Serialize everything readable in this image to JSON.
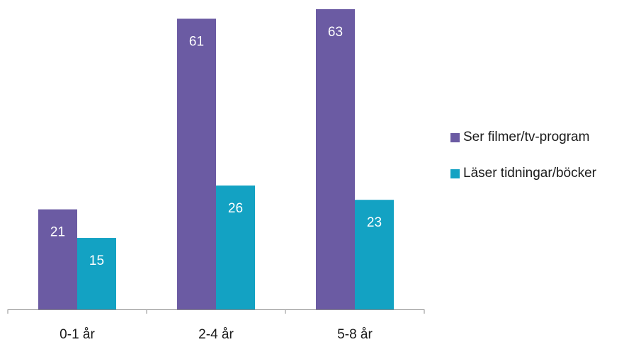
{
  "chart_data": {
    "type": "bar",
    "categories": [
      "0-1 år",
      "2-4 år",
      "5-8 år"
    ],
    "series": [
      {
        "name": "Ser filmer/tv-program",
        "values": [
          21,
          61,
          63
        ],
        "color": "#6b5ba3"
      },
      {
        "name": "Läser tidningar/böcker",
        "values": [
          15,
          26,
          23
        ],
        "color": "#13a2c3"
      }
    ],
    "title": "",
    "xlabel": "",
    "ylabel": "",
    "ylim": [
      0,
      63
    ],
    "grid": false,
    "legend_position": "right",
    "data_labels": true
  }
}
